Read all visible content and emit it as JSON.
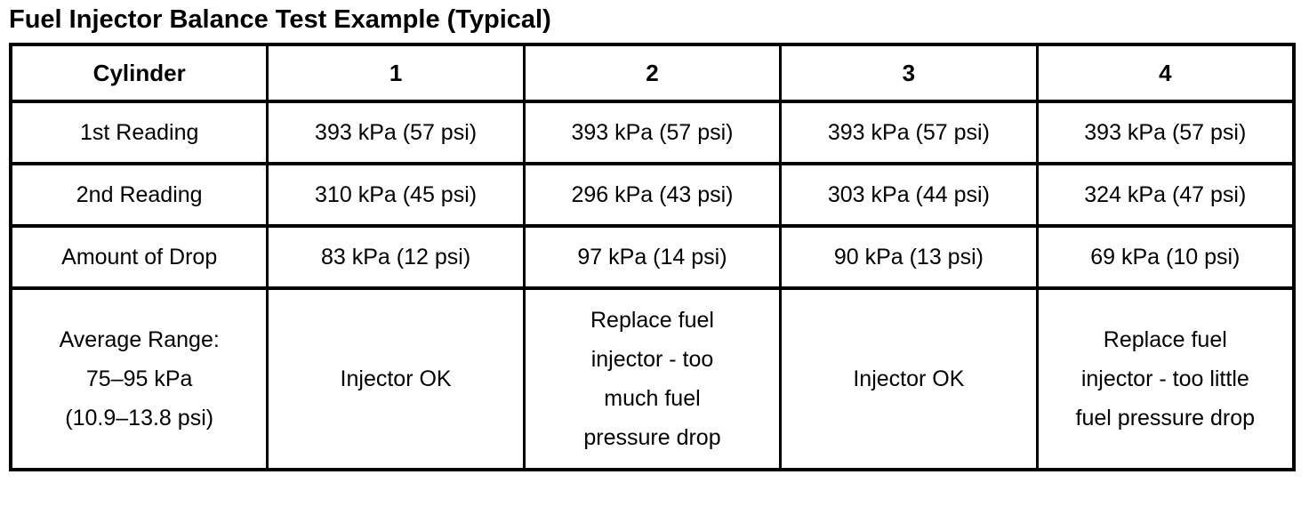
{
  "title": "Fuel Injector Balance Test Example (Typical)",
  "table": {
    "header": [
      "Cylinder",
      "1",
      "2",
      "3",
      "4"
    ],
    "rows": [
      {
        "label": "1st Reading",
        "cells": [
          "393 kPa (57 psi)",
          "393 kPa (57 psi)",
          "393 kPa (57 psi)",
          "393 kPa (57 psi)"
        ]
      },
      {
        "label": "2nd Reading",
        "cells": [
          "310 kPa (45 psi)",
          "296 kPa (43 psi)",
          "303 kPa (44 psi)",
          "324 kPa (47 psi)"
        ]
      },
      {
        "label": "Amount of Drop",
        "cells": [
          "83 kPa (12 psi)",
          "97 kPa (14 psi)",
          "90 kPa (13 psi)",
          "69 kPa (10 psi)"
        ]
      },
      {
        "label": "Average Range:\n75–95 kPa\n(10.9–13.8 psi)",
        "cells": [
          "Injector OK",
          "Replace fuel\ninjector - too\nmuch fuel\npressure drop",
          "Injector OK",
          "Replace fuel\ninjector - too little\nfuel pressure drop"
        ]
      }
    ]
  }
}
